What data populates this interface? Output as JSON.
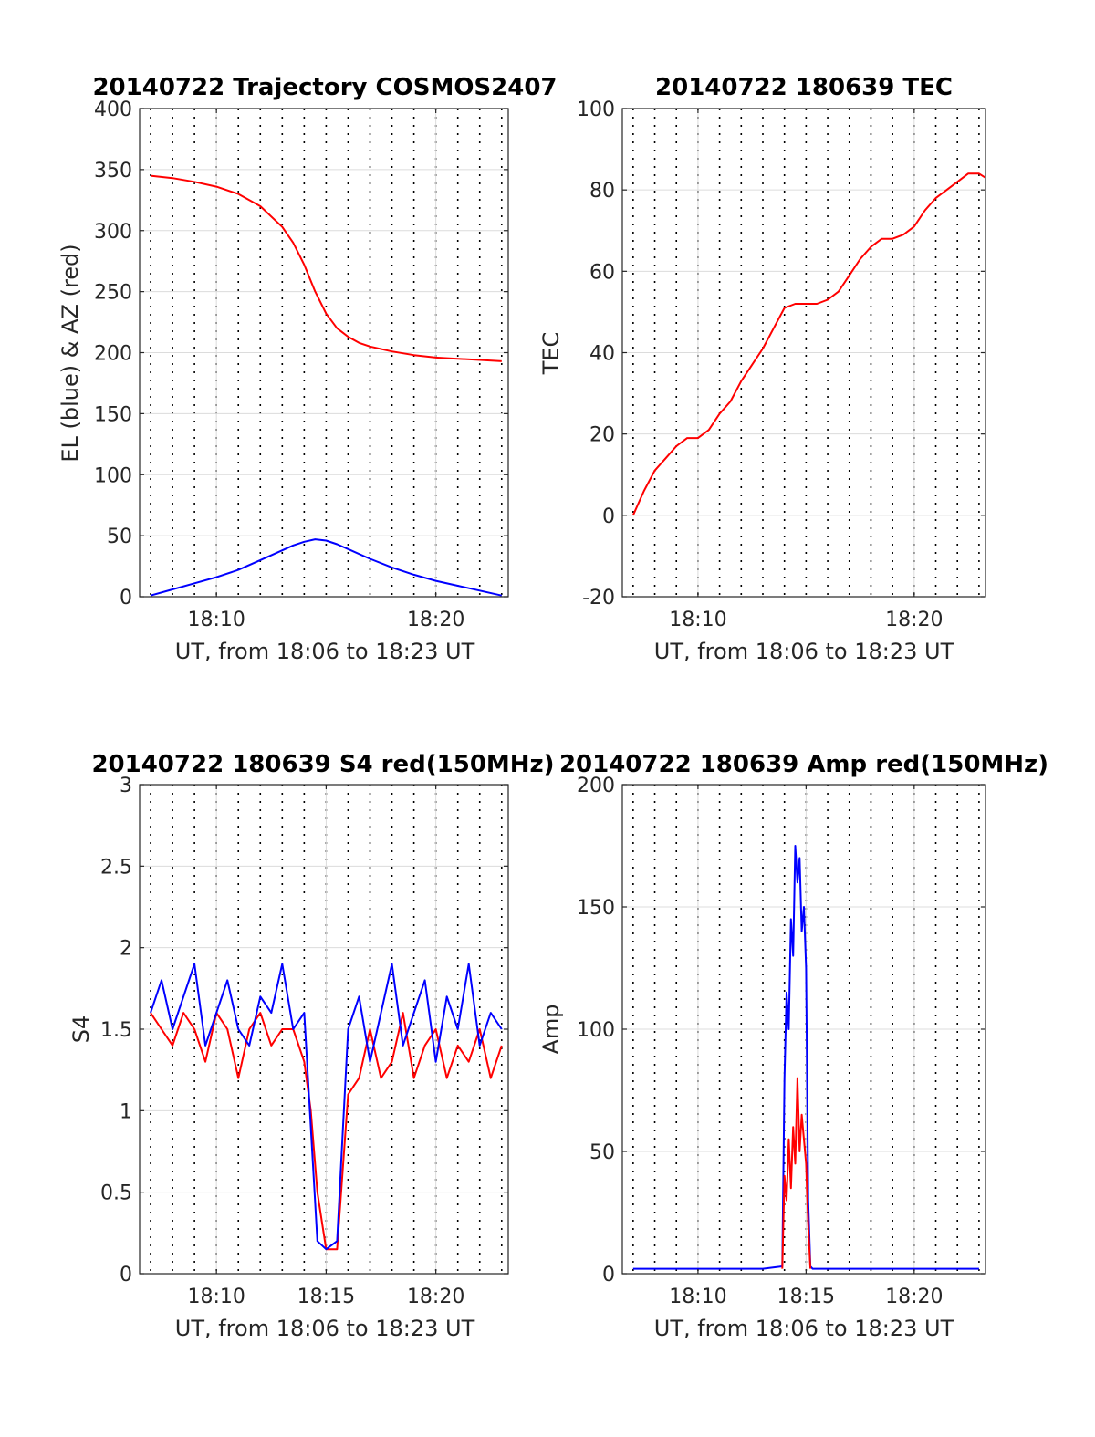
{
  "chart_data": [
    {
      "type": "line",
      "title": "20140722 Trajectory COSMOS2407",
      "xlabel": "UT, from 18:06 to 18:23 UT",
      "ylabel": "EL (blue) & AZ (red)",
      "xlim": [
        6.5,
        23.3
      ],
      "ylim": [
        0,
        400
      ],
      "yticks": [
        0,
        50,
        100,
        150,
        200,
        250,
        300,
        350,
        400
      ],
      "xticks": [
        {
          "v": 10,
          "label": "18:10"
        },
        {
          "v": 20,
          "label": "18:20"
        }
      ],
      "grid": true,
      "minor_grid_x": true,
      "series": [
        {
          "color": "#ff0000",
          "x": [
            7,
            8,
            9,
            10,
            11,
            12,
            13,
            13.5,
            14,
            14.5,
            15,
            15.5,
            16,
            16.5,
            17,
            18,
            19,
            20,
            21,
            22,
            23
          ],
          "y": [
            345,
            343,
            340,
            336,
            330,
            320,
            303,
            290,
            272,
            250,
            232,
            220,
            213,
            208,
            205,
            201,
            198,
            196,
            195,
            194,
            193
          ]
        },
        {
          "color": "#0000ff",
          "x": [
            7,
            8,
            9,
            10,
            11,
            12,
            13,
            13.5,
            14,
            14.5,
            15,
            15.5,
            16,
            17,
            18,
            19,
            20,
            21,
            22,
            23
          ],
          "y": [
            1,
            6,
            11,
            16,
            22,
            30,
            38,
            42,
            45,
            47,
            46,
            43,
            39,
            31,
            24,
            18,
            13,
            9,
            5,
            1
          ]
        }
      ]
    },
    {
      "type": "line",
      "title": "20140722 180639 TEC",
      "xlabel": "UT, from 18:06 to 18:23 UT",
      "ylabel": "TEC",
      "xlim": [
        6.5,
        23.3
      ],
      "ylim": [
        -20,
        100
      ],
      "yticks": [
        -20,
        0,
        20,
        40,
        60,
        80,
        100
      ],
      "xticks": [
        {
          "v": 10,
          "label": "18:10"
        },
        {
          "v": 20,
          "label": "18:20"
        }
      ],
      "grid": true,
      "minor_grid_x": true,
      "series": [
        {
          "color": "#ff0000",
          "x": [
            7,
            7.5,
            8,
            8.5,
            9,
            9.5,
            10,
            10.5,
            11,
            11.5,
            12,
            12.5,
            13,
            13.5,
            14,
            14.5,
            15,
            15.5,
            16,
            16.5,
            17,
            17.5,
            18,
            18.5,
            19,
            19.5,
            20,
            20.5,
            21,
            21.5,
            22,
            22.5,
            23,
            23.3
          ],
          "y": [
            0,
            6,
            11,
            14,
            17,
            19,
            19,
            21,
            25,
            28,
            33,
            37,
            41,
            46,
            51,
            52,
            52,
            52,
            53,
            55,
            59,
            63,
            66,
            68,
            68,
            69,
            71,
            75,
            78,
            80,
            82,
            84,
            84,
            83
          ]
        }
      ]
    },
    {
      "type": "line",
      "title": "20140722 180639 S4 red(150MHz)",
      "xlabel": "UT, from 18:06 to 18:23 UT",
      "ylabel": "S4",
      "xlim": [
        6.5,
        23.3
      ],
      "ylim": [
        0,
        3
      ],
      "yticks": [
        0,
        0.5,
        1,
        1.5,
        2,
        2.5,
        3
      ],
      "xticks": [
        {
          "v": 10,
          "label": "18:10"
        },
        {
          "v": 15,
          "label": "18:15"
        },
        {
          "v": 20,
          "label": "18:20"
        }
      ],
      "grid": true,
      "minor_grid_x": true,
      "series": [
        {
          "color": "#ff0000",
          "x": [
            7,
            7.5,
            8,
            8.5,
            9,
            9.5,
            10,
            10.5,
            11,
            11.5,
            12,
            12.5,
            13,
            13.5,
            14,
            14.3,
            14.6,
            15,
            15.5,
            16,
            16.5,
            17,
            17.5,
            18,
            18.5,
            19,
            19.5,
            20,
            20.5,
            21,
            21.5,
            22,
            22.5,
            23
          ],
          "y": [
            1.6,
            1.5,
            1.4,
            1.6,
            1.5,
            1.3,
            1.6,
            1.5,
            1.2,
            1.5,
            1.6,
            1.4,
            1.5,
            1.5,
            1.3,
            1.0,
            0.5,
            0.15,
            0.15,
            1.1,
            1.2,
            1.5,
            1.2,
            1.3,
            1.6,
            1.2,
            1.4,
            1.5,
            1.2,
            1.4,
            1.3,
            1.5,
            1.2,
            1.4
          ]
        },
        {
          "color": "#0000ff",
          "x": [
            7,
            7.5,
            8,
            8.5,
            9,
            9.5,
            10,
            10.5,
            11,
            11.5,
            12,
            12.5,
            13,
            13.5,
            14,
            14.3,
            14.6,
            15,
            15.5,
            16,
            16.5,
            17,
            17.5,
            18,
            18.5,
            19,
            19.5,
            20,
            20.5,
            21,
            21.5,
            22,
            22.5,
            23
          ],
          "y": [
            1.6,
            1.8,
            1.5,
            1.7,
            1.9,
            1.4,
            1.6,
            1.8,
            1.5,
            1.4,
            1.7,
            1.6,
            1.9,
            1.5,
            1.6,
            0.9,
            0.2,
            0.15,
            0.2,
            1.5,
            1.7,
            1.3,
            1.6,
            1.9,
            1.4,
            1.6,
            1.8,
            1.3,
            1.7,
            1.5,
            1.9,
            1.4,
            1.6,
            1.5
          ]
        }
      ]
    },
    {
      "type": "line",
      "title": "20140722 180639 Amp red(150MHz)",
      "xlabel": "UT, from 18:06 to 18:23 UT",
      "ylabel": "Amp",
      "xlim": [
        6.5,
        23.3
      ],
      "ylim": [
        0,
        200
      ],
      "yticks": [
        0,
        50,
        100,
        150,
        200
      ],
      "xticks": [
        {
          "v": 10,
          "label": "18:10"
        },
        {
          "v": 15,
          "label": "18:15"
        },
        {
          "v": 20,
          "label": "18:20"
        }
      ],
      "grid": true,
      "minor_grid_x": true,
      "series": [
        {
          "color": "#0000ff",
          "x": [
            7,
            8,
            9,
            10,
            11,
            12,
            13,
            13.9,
            14.0,
            14.1,
            14.2,
            14.3,
            14.4,
            14.5,
            14.6,
            14.7,
            14.8,
            14.9,
            15.0,
            15.1,
            15.2,
            15.3,
            16,
            17,
            18,
            19,
            20,
            21,
            22,
            23
          ],
          "y": [
            2,
            2,
            2,
            2,
            2,
            2,
            2,
            3,
            80,
            115,
            100,
            145,
            130,
            175,
            160,
            170,
            140,
            150,
            125,
            30,
            3,
            2,
            2,
            2,
            2,
            2,
            2,
            2,
            2,
            2
          ]
        },
        {
          "color": "#ff0000",
          "x": [
            13.9,
            14.0,
            14.1,
            14.2,
            14.3,
            14.4,
            14.5,
            14.6,
            14.7,
            14.8,
            14.9,
            15.0,
            15.1,
            15.2
          ],
          "y": [
            2,
            40,
            30,
            55,
            35,
            60,
            45,
            80,
            50,
            65,
            55,
            45,
            20,
            2
          ]
        }
      ]
    }
  ]
}
